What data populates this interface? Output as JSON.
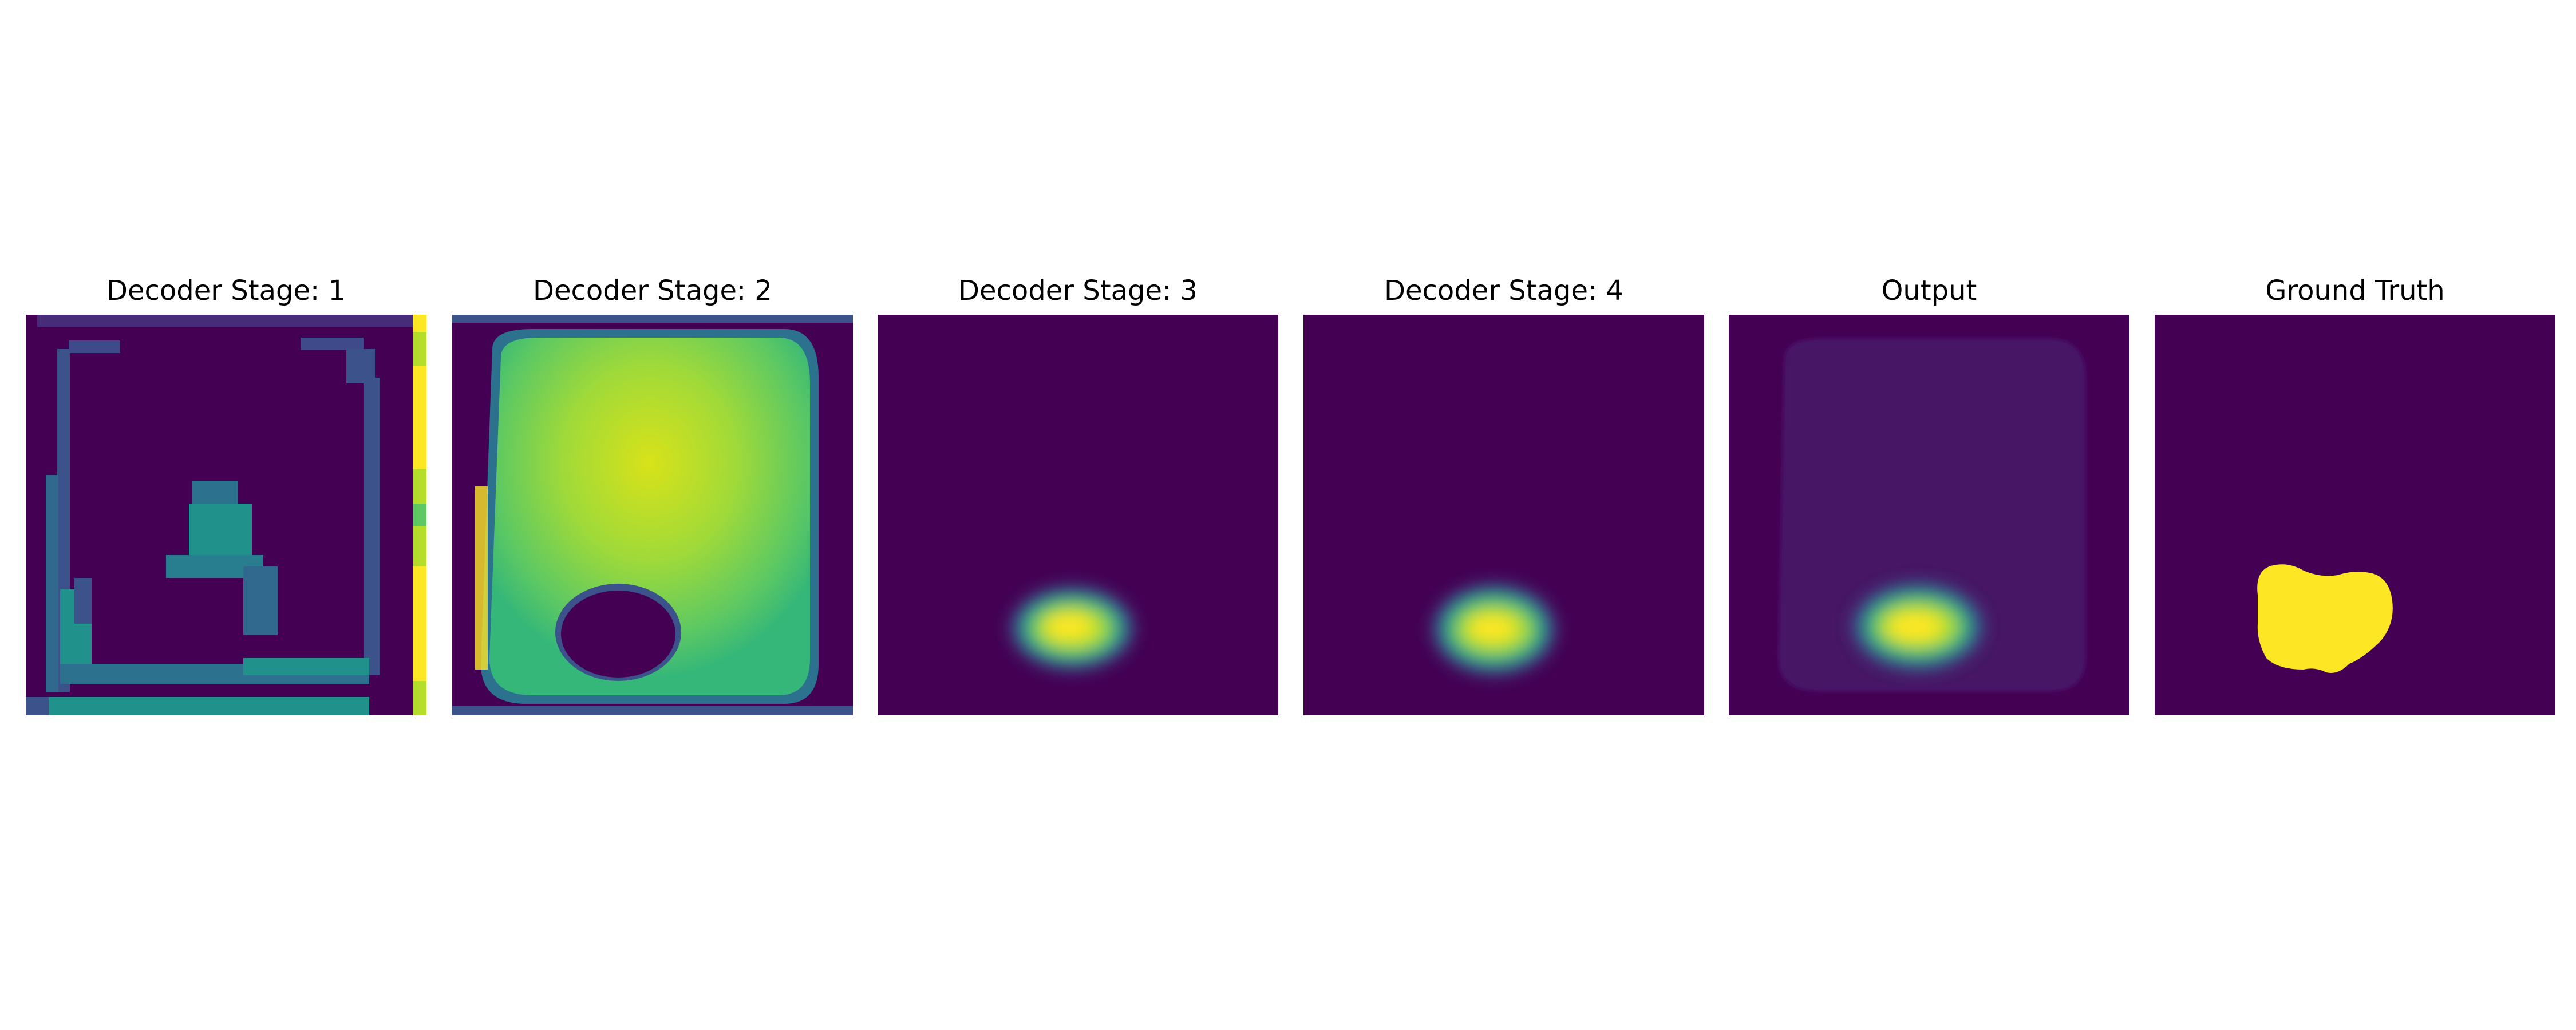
{
  "figure": {
    "panels": [
      {
        "title": "Decoder Stage: 1",
        "icon": "feature-map-coarse"
      },
      {
        "title": "Decoder Stage: 2",
        "icon": "feature-map-region"
      },
      {
        "title": "Decoder Stage: 3",
        "icon": "feature-map-blob"
      },
      {
        "title": "Decoder Stage: 4",
        "icon": "feature-map-blob"
      },
      {
        "title": "Output",
        "icon": "prediction-heatmap"
      },
      {
        "title": "Ground Truth",
        "icon": "binary-mask"
      }
    ],
    "colormap": "viridis",
    "colors": {
      "background": "#440154",
      "low": "#3b528b",
      "mid": "#21918c",
      "high": "#5ec962",
      "peak": "#fde725"
    }
  }
}
